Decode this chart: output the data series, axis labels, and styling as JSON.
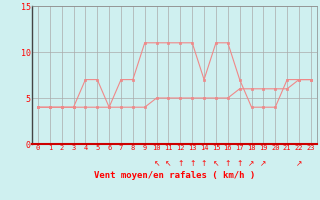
{
  "xlabel": "Vent moyen/en rafales ( km/h )",
  "bg_color": "#cff0f0",
  "grid_color": "#aaaaaa",
  "line_color": "#f08888",
  "x_values": [
    0,
    1,
    2,
    3,
    4,
    5,
    6,
    7,
    8,
    9,
    10,
    11,
    12,
    13,
    14,
    15,
    16,
    17,
    18,
    19,
    20,
    21,
    22,
    23
  ],
  "wind_mean": [
    4,
    4,
    4,
    4,
    4,
    4,
    4,
    4,
    4,
    4,
    5,
    5,
    5,
    5,
    5,
    5,
    5,
    6,
    6,
    6,
    6,
    6,
    7,
    7
  ],
  "wind_gust": [
    4,
    4,
    4,
    4,
    7,
    7,
    4,
    7,
    7,
    11,
    11,
    11,
    11,
    11,
    7,
    11,
    11,
    7,
    4,
    4,
    4,
    7,
    7,
    7
  ],
  "ylim": [
    0,
    15
  ],
  "xlim": [
    -0.5,
    23.5
  ],
  "yticks": [
    0,
    5,
    10,
    15
  ],
  "xticks": [
    0,
    1,
    2,
    3,
    4,
    5,
    6,
    7,
    8,
    9,
    10,
    11,
    12,
    13,
    14,
    15,
    16,
    17,
    18,
    19,
    20,
    21,
    22,
    23
  ],
  "wind_dir_x": [
    10,
    11,
    12,
    13,
    14,
    15,
    16,
    17,
    18,
    19,
    22
  ],
  "wind_dir_symbols": [
    "↖",
    "↖",
    "↑",
    "↑",
    "↑",
    "↖",
    "↑",
    "↑",
    "↗",
    "↗",
    "↗"
  ]
}
